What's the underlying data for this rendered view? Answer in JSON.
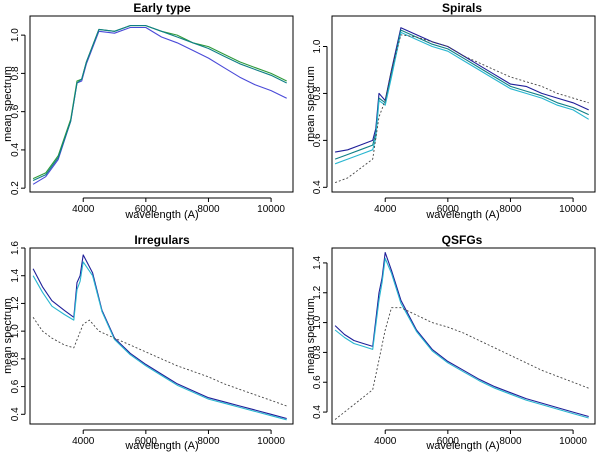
{
  "colors": {
    "dark_blue": "#1f1f99",
    "blue": "#4a4ad8",
    "green": "#2e9a3a",
    "teal": "#0f7f86",
    "cyan": "#28b6d0",
    "dotted_gray": "#444444"
  },
  "chart_data": [
    {
      "type": "line",
      "title": "Early type",
      "xlabel": "wavelength (A)",
      "ylabel": "mean spectrum",
      "xlim": [
        2300,
        10700
      ],
      "ylim": [
        0.18,
        1.1
      ],
      "xticks": [
        4000,
        6000,
        8000,
        10000
      ],
      "xtick_labels": [
        "4000",
        "6000",
        "8000",
        "10000"
      ],
      "yticks": [
        0.2,
        0.4,
        0.6,
        0.8,
        1.0
      ],
      "ytick_labels": [
        "0.2",
        "0.4",
        "0.6",
        "0.8",
        "1.0"
      ],
      "series": [
        {
          "name": "blue",
          "color_key": "blue",
          "dash": false,
          "x": [
            2400,
            2800,
            3200,
            3600,
            3800,
            3950,
            4100,
            4500,
            5000,
            5500,
            6000,
            6500,
            7000,
            7500,
            8000,
            8500,
            9000,
            9500,
            10000,
            10500
          ],
          "y": [
            0.22,
            0.26,
            0.35,
            0.55,
            0.75,
            0.76,
            0.85,
            1.02,
            1.01,
            1.04,
            1.04,
            0.99,
            0.96,
            0.92,
            0.88,
            0.83,
            0.78,
            0.74,
            0.71,
            0.67
          ]
        },
        {
          "name": "green",
          "color_key": "green",
          "dash": false,
          "x": [
            2400,
            2800,
            3200,
            3600,
            3800,
            3950,
            4100,
            4500,
            5000,
            5500,
            6000,
            6500,
            7000,
            7500,
            8000,
            8500,
            9000,
            9500,
            10000,
            10500
          ],
          "y": [
            0.25,
            0.28,
            0.37,
            0.56,
            0.76,
            0.77,
            0.86,
            1.03,
            1.02,
            1.05,
            1.05,
            1.02,
            1.0,
            0.96,
            0.94,
            0.9,
            0.86,
            0.83,
            0.8,
            0.76
          ]
        },
        {
          "name": "teal",
          "color_key": "teal",
          "dash": false,
          "x": [
            2400,
            2800,
            3200,
            3600,
            3800,
            3950,
            4100,
            4500,
            5000,
            5500,
            6000,
            6500,
            7000,
            7500,
            8000,
            8500,
            9000,
            9500,
            10000,
            10500
          ],
          "y": [
            0.24,
            0.27,
            0.36,
            0.55,
            0.75,
            0.77,
            0.86,
            1.03,
            1.02,
            1.05,
            1.05,
            1.02,
            0.99,
            0.96,
            0.93,
            0.89,
            0.85,
            0.82,
            0.79,
            0.75
          ]
        }
      ]
    },
    {
      "type": "line",
      "title": "Spirals",
      "xlabel": "wavelength (A)",
      "ylabel": "mean spectrum",
      "xlim": [
        2300,
        10700
      ],
      "ylim": [
        0.38,
        1.13
      ],
      "xticks": [
        4000,
        6000,
        8000,
        10000
      ],
      "xtick_labels": [
        "4000",
        "6000",
        "8000",
        "10000"
      ],
      "yticks": [
        0.4,
        0.6,
        0.8,
        1.0
      ],
      "ytick_labels": [
        "0.4",
        "0.6",
        "0.8",
        "1.0"
      ],
      "series": [
        {
          "name": "dark blue",
          "color_key": "dark_blue",
          "dash": false,
          "x": [
            2400,
            2800,
            3200,
            3600,
            3700,
            3800,
            4000,
            4200,
            4500,
            5000,
            5500,
            6000,
            6500,
            7000,
            7500,
            8000,
            8500,
            9000,
            9500,
            10000,
            10500
          ],
          "y": [
            0.55,
            0.56,
            0.58,
            0.6,
            0.65,
            0.8,
            0.77,
            0.9,
            1.08,
            1.05,
            1.02,
            1.0,
            0.96,
            0.92,
            0.88,
            0.84,
            0.83,
            0.8,
            0.78,
            0.76,
            0.73
          ]
        },
        {
          "name": "teal",
          "color_key": "teal",
          "dash": false,
          "x": [
            2400,
            2800,
            3200,
            3600,
            3700,
            3800,
            4000,
            4200,
            4500,
            5000,
            5500,
            6000,
            6500,
            7000,
            7500,
            8000,
            8500,
            9000,
            9500,
            10000,
            10500
          ],
          "y": [
            0.52,
            0.54,
            0.56,
            0.58,
            0.63,
            0.78,
            0.76,
            0.88,
            1.07,
            1.04,
            1.01,
            0.99,
            0.95,
            0.91,
            0.87,
            0.83,
            0.81,
            0.79,
            0.76,
            0.74,
            0.71
          ]
        },
        {
          "name": "cyan",
          "color_key": "cyan",
          "dash": false,
          "x": [
            2400,
            2800,
            3200,
            3600,
            3700,
            3800,
            4000,
            4200,
            4500,
            5000,
            5500,
            6000,
            6500,
            7000,
            7500,
            8000,
            8500,
            9000,
            9500,
            10000,
            10500
          ],
          "y": [
            0.5,
            0.52,
            0.54,
            0.56,
            0.61,
            0.77,
            0.75,
            0.87,
            1.06,
            1.03,
            1.0,
            0.98,
            0.94,
            0.9,
            0.86,
            0.82,
            0.8,
            0.78,
            0.75,
            0.73,
            0.69
          ]
        },
        {
          "name": "dotted reference",
          "color_key": "dotted_gray",
          "dash": true,
          "x": [
            2400,
            2800,
            3200,
            3600,
            3800,
            4000,
            4200,
            4500,
            5000,
            5500,
            6000,
            6500,
            7000,
            7500,
            8000,
            8500,
            9000,
            9500,
            10000,
            10500
          ],
          "y": [
            0.42,
            0.44,
            0.48,
            0.52,
            0.7,
            0.77,
            0.9,
            1.05,
            1.04,
            1.02,
            1.0,
            0.96,
            0.93,
            0.9,
            0.87,
            0.85,
            0.83,
            0.8,
            0.78,
            0.76
          ]
        }
      ]
    },
    {
      "type": "line",
      "title": "Irregulars",
      "xlabel": "wavelength (A)",
      "ylabel": "mean spectrum",
      "xlim": [
        2300,
        10700
      ],
      "ylim": [
        0.33,
        1.6
      ],
      "xticks": [
        4000,
        6000,
        8000,
        10000
      ],
      "xtick_labels": [
        "4000",
        "6000",
        "8000",
        "10000"
      ],
      "yticks": [
        0.4,
        0.6,
        0.8,
        1.0,
        1.2,
        1.4,
        1.6
      ],
      "ytick_labels": [
        "0.4",
        "0.6",
        "0.8",
        "1.0",
        "1.2",
        "1.4",
        "1.6"
      ],
      "series": [
        {
          "name": "dark blue",
          "color_key": "dark_blue",
          "dash": false,
          "x": [
            2400,
            2700,
            3000,
            3400,
            3700,
            3800,
            3900,
            4000,
            4300,
            4600,
            5000,
            5500,
            6000,
            6500,
            7000,
            7500,
            8000,
            8500,
            9000,
            9500,
            10000,
            10500
          ],
          "y": [
            1.45,
            1.32,
            1.22,
            1.15,
            1.1,
            1.35,
            1.4,
            1.55,
            1.42,
            1.15,
            0.95,
            0.84,
            0.76,
            0.69,
            0.62,
            0.57,
            0.52,
            0.49,
            0.46,
            0.43,
            0.4,
            0.37
          ]
        },
        {
          "name": "cyan",
          "color_key": "cyan",
          "dash": false,
          "x": [
            2400,
            2700,
            3000,
            3400,
            3700,
            3800,
            3900,
            4000,
            4300,
            4600,
            5000,
            5500,
            6000,
            6500,
            7000,
            7500,
            8000,
            8500,
            9000,
            9500,
            10000,
            10500
          ],
          "y": [
            1.4,
            1.28,
            1.18,
            1.12,
            1.08,
            1.3,
            1.36,
            1.5,
            1.4,
            1.14,
            0.94,
            0.83,
            0.75,
            0.68,
            0.61,
            0.56,
            0.51,
            0.48,
            0.45,
            0.42,
            0.39,
            0.36
          ]
        },
        {
          "name": "dotted reference",
          "color_key": "dotted_gray",
          "dash": true,
          "x": [
            2400,
            2700,
            3000,
            3400,
            3700,
            4000,
            4200,
            4500,
            5000,
            5500,
            6000,
            6500,
            7000,
            7500,
            8000,
            8500,
            9000,
            9500,
            10000,
            10500
          ],
          "y": [
            1.1,
            1.0,
            0.95,
            0.9,
            0.88,
            1.05,
            1.08,
            1.0,
            0.95,
            0.9,
            0.85,
            0.8,
            0.75,
            0.71,
            0.67,
            0.62,
            0.58,
            0.54,
            0.5,
            0.46
          ]
        }
      ]
    },
    {
      "type": "line",
      "title": "QSFGs",
      "xlabel": "wavelength (A)",
      "ylabel": "mean spectrum",
      "xlim": [
        2300,
        10700
      ],
      "ylim": [
        0.32,
        1.5
      ],
      "xticks": [
        4000,
        6000,
        8000,
        10000
      ],
      "xtick_labels": [
        "4000",
        "6000",
        "8000",
        "10000"
      ],
      "yticks": [
        0.4,
        0.6,
        0.8,
        1.0,
        1.2,
        1.4
      ],
      "ytick_labels": [
        "0.4",
        "0.6",
        "0.8",
        "1.0",
        "1.2",
        "1.4"
      ],
      "series": [
        {
          "name": "dark blue",
          "color_key": "dark_blue",
          "dash": false,
          "x": [
            2400,
            2700,
            3000,
            3300,
            3600,
            3800,
            3900,
            4000,
            4200,
            4500,
            5000,
            5500,
            6000,
            6500,
            7000,
            7500,
            8000,
            8500,
            9000,
            9500,
            10000,
            10500
          ],
          "y": [
            0.98,
            0.92,
            0.88,
            0.86,
            0.84,
            1.2,
            1.3,
            1.47,
            1.35,
            1.15,
            0.95,
            0.82,
            0.74,
            0.68,
            0.62,
            0.57,
            0.53,
            0.49,
            0.46,
            0.43,
            0.4,
            0.37
          ]
        },
        {
          "name": "cyan",
          "color_key": "cyan",
          "dash": false,
          "x": [
            2400,
            2700,
            3000,
            3300,
            3600,
            3800,
            3900,
            4000,
            4200,
            4500,
            5000,
            5500,
            6000,
            6500,
            7000,
            7500,
            8000,
            8500,
            9000,
            9500,
            10000,
            10500
          ],
          "y": [
            0.95,
            0.9,
            0.86,
            0.84,
            0.82,
            1.15,
            1.27,
            1.43,
            1.33,
            1.13,
            0.94,
            0.81,
            0.73,
            0.67,
            0.61,
            0.56,
            0.52,
            0.48,
            0.45,
            0.42,
            0.39,
            0.36
          ]
        },
        {
          "name": "dotted reference",
          "color_key": "dotted_gray",
          "dash": true,
          "x": [
            2400,
            2700,
            3000,
            3300,
            3600,
            3800,
            4000,
            4200,
            4500,
            5000,
            5500,
            6000,
            6500,
            7000,
            7500,
            8000,
            8500,
            9000,
            9500,
            10000,
            10500
          ],
          "y": [
            0.35,
            0.4,
            0.45,
            0.5,
            0.55,
            0.75,
            0.95,
            1.1,
            1.1,
            1.05,
            1.0,
            0.97,
            0.93,
            0.88,
            0.83,
            0.78,
            0.73,
            0.68,
            0.64,
            0.6,
            0.56
          ]
        }
      ]
    }
  ]
}
